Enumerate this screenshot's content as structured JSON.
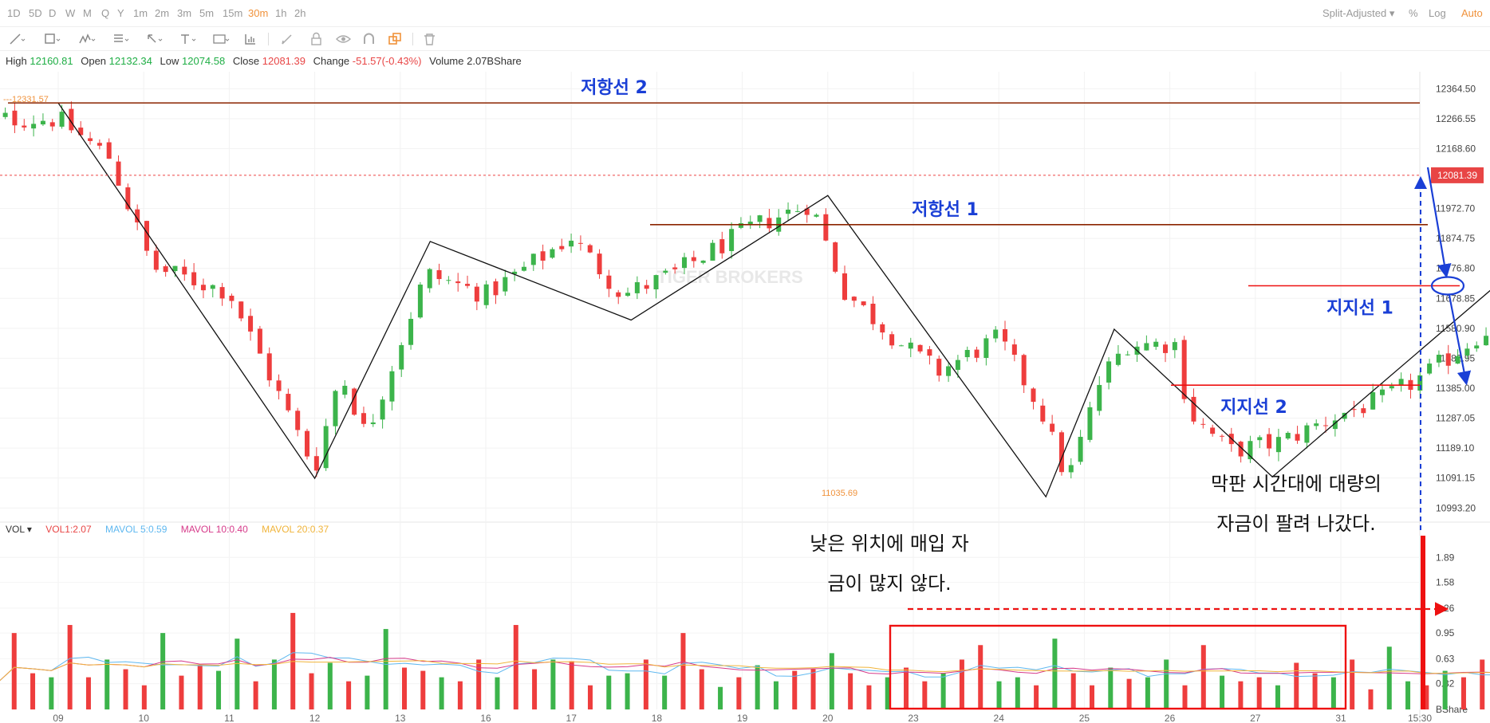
{
  "periods": [
    "1D",
    "5D",
    "D",
    "W",
    "M",
    "Q",
    "Y",
    "1m",
    "2m",
    "3m",
    "5m",
    "15m",
    "30m",
    "1h",
    "2h"
  ],
  "active_period": "30m",
  "top_right": {
    "split": "Split-Adjusted ▾",
    "percent": "%",
    "log": "Log",
    "auto": "Auto"
  },
  "toolbar_icons": [
    "line-tool-icon",
    "rectangle-tool-icon",
    "pattern-tool-icon",
    "fib-tool-icon",
    "arrow-tool-icon",
    "text-tool-icon",
    "label-tool-icon",
    "measure-tool-icon",
    "pencil-icon",
    "lock-icon",
    "eye-icon",
    "magnet-icon",
    "layers-icon",
    "trash-icon"
  ],
  "info": {
    "high_label": "High",
    "high": "12160.81",
    "open_label": "Open",
    "open": "12132.34",
    "low_label": "Low",
    "low": "12074.58",
    "close_label": "Close",
    "close": "12081.39",
    "change_label": "Change",
    "change": "-51.57(-0.43%)",
    "volume_label": "Volume",
    "volume": "2.07BShare"
  },
  "vol_legend": {
    "vol": "VOL ▾",
    "vol1": "VOL1:2.07",
    "mavol5": "MAVOL 5:0.59",
    "mavol10": "MAVOL 10:0.40",
    "mavol20": "MAVOL 20:0.37"
  },
  "colors": {
    "up": "#3cb44b",
    "down": "#ee3d3d",
    "resistance": "#8b2500",
    "support": "#ee1111",
    "annotation_blue": "#1a3fd6",
    "accent": "#f0923b"
  },
  "chart_data": {
    "type": "candlestick",
    "price_axis_ticks": [
      "12364.50",
      "12266.55",
      "12168.60",
      "11972.70",
      "11874.75",
      "11776.80",
      "11678.85",
      "11580.90",
      "11482.95",
      "11385.00",
      "11287.05",
      "11189.10",
      "11091.15",
      "10993.20"
    ],
    "volume_axis_ticks": [
      "1.89",
      "1.58",
      "1.26",
      "0.95",
      "0.63",
      "0.32"
    ],
    "volume_unit": "BShare",
    "x_labels": [
      "09",
      "10",
      "11",
      "12",
      "13",
      "16",
      "17",
      "18",
      "19",
      "20",
      "23",
      "24",
      "25",
      "26",
      "27",
      "31",
      "15:30"
    ],
    "ylim": [
      10960,
      12420
    ],
    "volume_ylim": [
      0,
      2.2
    ],
    "last_price": "12081.39",
    "high_marker": "12331.57",
    "low_marker": "11035.69",
    "resistance_lines": [
      {
        "label": "저항선 2",
        "price": 12318
      },
      {
        "label": "저항선 1",
        "price": 11920
      }
    ],
    "support_lines": [
      {
        "label": "지지선 1",
        "price": 11720
      },
      {
        "label": "지지선 2",
        "price": 11395
      }
    ],
    "zigzag": [
      [
        9.0,
        12318
      ],
      [
        12.0,
        11090
      ],
      [
        13.35,
        11865
      ],
      [
        15.7,
        11608
      ],
      [
        18.0,
        12015
      ],
      [
        20.55,
        11030
      ],
      [
        21.35,
        11578
      ],
      [
        23.2,
        11095
      ],
      [
        27.9,
        12220
      ]
    ],
    "anchors": [
      [
        9.0,
        12265
      ],
      [
        9.6,
        12140
      ],
      [
        10.1,
        11780
      ],
      [
        11.0,
        11700
      ],
      [
        12.0,
        11120
      ],
      [
        12.3,
        11440
      ],
      [
        12.6,
        11230
      ],
      [
        13.3,
        11760
      ],
      [
        14.0,
        11690
      ],
      [
        15.0,
        11880
      ],
      [
        15.6,
        11690
      ],
      [
        16.2,
        11760
      ],
      [
        17.1,
        11910
      ],
      [
        17.8,
        11990
      ],
      [
        18.2,
        11700
      ],
      [
        18.9,
        11520
      ],
      [
        19.3,
        11440
      ],
      [
        20.0,
        11550
      ],
      [
        20.5,
        11310
      ],
      [
        20.8,
        11080
      ],
      [
        21.2,
        11420
      ],
      [
        21.5,
        11530
      ],
      [
        22.1,
        11530
      ],
      [
        22.2,
        11310
      ],
      [
        22.7,
        11180
      ],
      [
        23.3,
        11210
      ],
      [
        24.0,
        11300
      ],
      [
        24.5,
        11350
      ],
      [
        25.0,
        11430
      ],
      [
        26.0,
        11640
      ],
      [
        26.6,
        11720
      ],
      [
        26.8,
        11740
      ],
      [
        27.0,
        11900
      ],
      [
        27.5,
        11990
      ],
      [
        28.3,
        12060
      ],
      [
        29.0,
        12130
      ],
      [
        29.9,
        12100
      ],
      [
        30.0,
        12080
      ]
    ],
    "volume_levels": [
      0.3,
      0.32,
      0.95,
      0.45,
      0.4,
      1.05,
      0.4,
      0.62,
      0.5,
      0.3,
      0.95,
      0.42,
      0.55,
      0.48,
      0.88,
      0.35,
      0.62,
      1.2,
      0.45,
      0.58,
      0.35,
      0.42,
      1.0,
      0.52,
      0.48,
      0.4,
      0.35,
      0.62,
      0.4,
      1.05,
      0.5,
      0.62,
      0.6,
      0.3,
      0.42,
      0.45,
      0.62,
      0.42,
      0.95,
      0.5,
      0.28,
      0.4,
      0.55,
      0.35,
      0.48,
      0.5,
      0.7,
      0.45,
      0.3,
      0.4,
      0.52,
      0.35,
      0.45,
      0.62,
      0.8,
      0.35,
      0.4,
      0.3,
      0.88,
      0.45,
      0.3,
      0.52,
      0.38,
      0.4,
      0.62,
      0.3,
      0.8,
      0.42,
      0.35,
      0.4,
      0.3,
      0.58,
      0.45,
      0.4,
      0.62,
      0.25,
      0.78,
      0.35,
      0.3,
      0.48,
      0.4,
      0.62,
      0.35,
      0.3,
      0.42,
      0.52,
      0.35,
      0.38,
      0.62,
      0.8,
      0.4,
      0.45,
      0.3,
      0.38,
      0.52,
      0.62,
      0.3,
      0.42,
      0.48,
      0.35,
      0.4,
      2.07
    ],
    "annotations": {
      "low_buy": [
        "낮은 위치에 매입 자",
        "금이 많지 않다."
      ],
      "late_sell": [
        "막판 시간대에 대량의",
        "자금이 팔려 나갔다."
      ]
    },
    "watermark": "TIGER BROKERS"
  }
}
